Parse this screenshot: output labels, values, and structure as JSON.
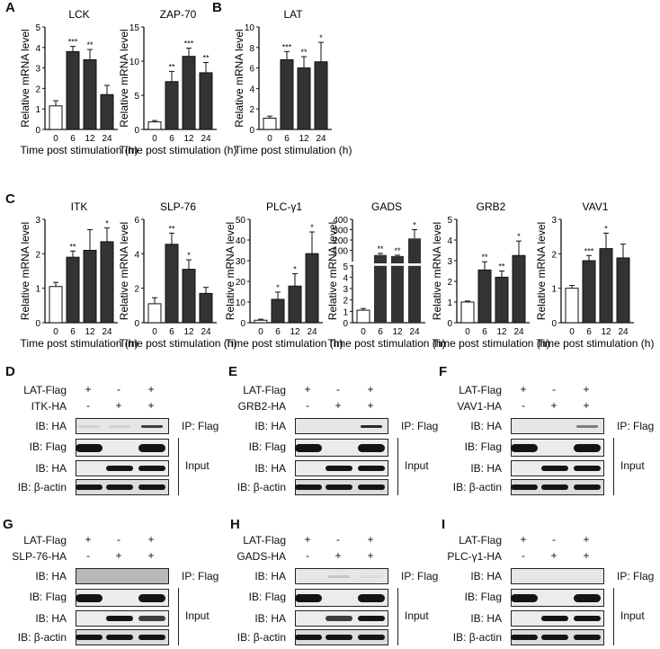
{
  "panels": {
    "A": "A",
    "B": "B",
    "C": "C",
    "D": "D",
    "E": "E",
    "F": "F",
    "G": "G",
    "H": "H",
    "I": "I"
  },
  "common": {
    "ylabel": "Relative mRNA level",
    "xlabel": "Time post stimulation (h)",
    "categories": [
      "0",
      "6",
      "12",
      "24"
    ]
  },
  "chart_data": [
    {
      "panel": "A",
      "type": "bar",
      "title": "LCK",
      "categories": [
        "0",
        "6",
        "12",
        "24"
      ],
      "values": [
        1.15,
        3.8,
        3.4,
        1.7
      ],
      "errors": [
        0.25,
        0.25,
        0.5,
        0.45
      ],
      "significance": [
        "",
        "***",
        "**",
        ""
      ],
      "ylim": [
        0,
        5
      ],
      "yticks": [
        0,
        1,
        2,
        3,
        4,
        5
      ],
      "xlabel": "Time post stimulation (h)",
      "ylabel": "Relative mRNA level",
      "bar_colors": [
        "#ffffff",
        "#333333",
        "#333333",
        "#333333"
      ]
    },
    {
      "panel": "A",
      "type": "bar",
      "title": "ZAP-70",
      "categories": [
        "0",
        "6",
        "12",
        "24"
      ],
      "values": [
        1.1,
        7.0,
        10.7,
        8.3
      ],
      "errors": [
        0.2,
        1.5,
        1.2,
        1.5
      ],
      "significance": [
        "",
        "**",
        "***",
        "**"
      ],
      "ylim": [
        0,
        15
      ],
      "yticks": [
        0,
        5,
        10,
        15
      ],
      "xlabel": "Time post stimulation (h)",
      "ylabel": "Relative mRNA level",
      "bar_colors": [
        "#ffffff",
        "#333333",
        "#333333",
        "#333333"
      ]
    },
    {
      "panel": "B",
      "type": "bar",
      "title": "LAT",
      "categories": [
        "0",
        "6",
        "12",
        "24"
      ],
      "values": [
        1.1,
        6.8,
        6.0,
        6.6
      ],
      "errors": [
        0.2,
        0.8,
        1.1,
        1.9
      ],
      "significance": [
        "",
        "***",
        "**",
        "*"
      ],
      "ylim": [
        0,
        10
      ],
      "yticks": [
        0,
        2,
        4,
        6,
        8,
        10
      ],
      "xlabel": "Time post stimulation (h)",
      "ylabel": "Relative mRNA level",
      "bar_colors": [
        "#ffffff",
        "#333333",
        "#333333",
        "#333333"
      ]
    },
    {
      "panel": "C",
      "type": "bar",
      "title": "ITK",
      "categories": [
        "0",
        "6",
        "12",
        "24"
      ],
      "values": [
        1.05,
        1.9,
        2.1,
        2.35
      ],
      "errors": [
        0.12,
        0.18,
        0.6,
        0.4
      ],
      "significance": [
        "",
        "**",
        "",
        "*"
      ],
      "ylim": [
        0,
        3
      ],
      "yticks": [
        0,
        1,
        2,
        3
      ],
      "xlabel": "Time post stimulation (h)",
      "ylabel": "Relative mRNA level",
      "bar_colors": [
        "#ffffff",
        "#333333",
        "#333333",
        "#333333"
      ]
    },
    {
      "panel": "C",
      "type": "bar",
      "title": "SLP-76",
      "categories": [
        "0",
        "6",
        "12",
        "24"
      ],
      "values": [
        1.1,
        4.55,
        3.1,
        1.7
      ],
      "errors": [
        0.35,
        0.65,
        0.55,
        0.35
      ],
      "significance": [
        "",
        "**",
        "*",
        ""
      ],
      "ylim": [
        0,
        6
      ],
      "yticks": [
        0,
        2,
        4,
        6
      ],
      "xlabel": "Time post stimulation (h)",
      "ylabel": "Relative mRNA level",
      "bar_colors": [
        "#ffffff",
        "#333333",
        "#333333",
        "#333333"
      ]
    },
    {
      "panel": "C",
      "type": "bar",
      "title": "PLC-γ1",
      "categories": [
        "0",
        "6",
        "12",
        "24"
      ],
      "values": [
        1.2,
        11.3,
        17.7,
        33.4
      ],
      "errors": [
        0.5,
        3.5,
        6.0,
        10.5
      ],
      "significance": [
        "",
        "*",
        "*",
        "*"
      ],
      "ylim": [
        0,
        50
      ],
      "yticks": [
        0,
        10,
        20,
        30,
        40,
        50
      ],
      "xlabel": "Time post stimulation (h)",
      "ylabel": "Relative mRNA level",
      "bar_colors": [
        "#ffffff",
        "#333333",
        "#333333",
        "#333333"
      ]
    },
    {
      "panel": "C",
      "type": "bar",
      "title": "GADS",
      "categories": [
        "0",
        "6",
        "12",
        "24"
      ],
      "values": [
        1.1,
        55,
        45,
        215
      ],
      "errors": [
        0.15,
        15,
        8,
        85
      ],
      "significance": [
        "",
        "**",
        "**",
        "*"
      ],
      "broken_axis": {
        "lower": [
          0,
          5
        ],
        "upper": [
          0,
          400
        ],
        "lower_ticks": [
          0,
          1,
          2,
          3,
          4,
          5
        ],
        "upper_ticks": [
          100,
          200,
          300,
          400
        ]
      },
      "xlabel": "Time post stimulation (h)",
      "ylabel": "Relative mRNA level",
      "bar_colors": [
        "#ffffff",
        "#333333",
        "#333333",
        "#333333"
      ]
    },
    {
      "panel": "C",
      "type": "bar",
      "title": "GRB2",
      "categories": [
        "0",
        "6",
        "12",
        "24"
      ],
      "values": [
        1.0,
        2.55,
        2.2,
        3.25
      ],
      "errors": [
        0.05,
        0.4,
        0.3,
        0.7
      ],
      "significance": [
        "",
        "**",
        "**",
        "*"
      ],
      "ylim": [
        0,
        5
      ],
      "yticks": [
        0,
        1,
        2,
        3,
        4,
        5
      ],
      "xlabel": "Time post stimulation (h)",
      "ylabel": "Relative mRNA level",
      "bar_colors": [
        "#ffffff",
        "#333333",
        "#333333",
        "#333333"
      ]
    },
    {
      "panel": "C",
      "type": "bar",
      "title": "VAV1",
      "categories": [
        "0",
        "6",
        "12",
        "24"
      ],
      "values": [
        1.0,
        1.8,
        2.15,
        1.88
      ],
      "errors": [
        0.08,
        0.15,
        0.45,
        0.4
      ],
      "significance": [
        "",
        "***",
        "*",
        ""
      ],
      "ylim": [
        0,
        3
      ],
      "yticks": [
        0,
        1,
        2,
        3
      ],
      "xlabel": "Time post stimulation (h)",
      "ylabel": "Relative mRNA level",
      "bar_colors": [
        "#ffffff",
        "#333333",
        "#333333",
        "#333333"
      ]
    }
  ],
  "blots": [
    {
      "panel": "D",
      "bait": "LAT-Flag",
      "prey": "ITK-HA",
      "bait_signs": [
        "+",
        "-",
        "+"
      ],
      "prey_signs": [
        "-",
        "+",
        "+"
      ]
    },
    {
      "panel": "E",
      "bait": "LAT-Flag",
      "prey": "GRB2-HA",
      "bait_signs": [
        "+",
        "-",
        "+"
      ],
      "prey_signs": [
        "-",
        "+",
        "+"
      ]
    },
    {
      "panel": "F",
      "bait": "LAT-Flag",
      "prey": "VAV1-HA",
      "bait_signs": [
        "+",
        "-",
        "+"
      ],
      "prey_signs": [
        "-",
        "+",
        "+"
      ]
    },
    {
      "panel": "G",
      "bait": "LAT-Flag",
      "prey": "SLP-76-HA",
      "bait_signs": [
        "+",
        "-",
        "+"
      ],
      "prey_signs": [
        "-",
        "+",
        "+"
      ]
    },
    {
      "panel": "H",
      "bait": "LAT-Flag",
      "prey": "GADS-HA",
      "bait_signs": [
        "+",
        "-",
        "+"
      ],
      "prey_signs": [
        "-",
        "+",
        "+"
      ]
    },
    {
      "panel": "I",
      "bait": "LAT-Flag",
      "prey": "PLC-γ1-HA",
      "bait_signs": [
        "+",
        "-",
        "+"
      ],
      "prey_signs": [
        "-",
        "+",
        "+"
      ]
    }
  ],
  "blot_labels": {
    "ib_ha": "IB:  HA",
    "ib_flag": "IB:  Flag",
    "ib_actin": "IB:  β-actin",
    "ip_flag": "IP:  Flag",
    "input": "Input"
  }
}
